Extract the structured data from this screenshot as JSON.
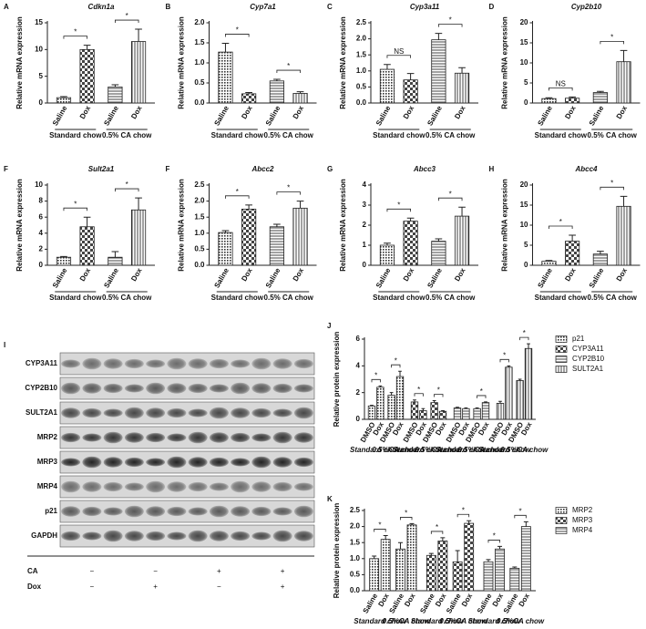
{
  "chart_data": [
    {
      "type": "bar",
      "panel": "A",
      "title": "Cdkn1a",
      "ylabel": "Relative mRNA expression",
      "categories": [
        "Saline",
        "Dox",
        "Saline",
        "Dox"
      ],
      "groups": [
        "Standard chow",
        "0.5% CA chow"
      ],
      "values": [
        1.0,
        10.0,
        3.0,
        11.5
      ],
      "errors": [
        0.2,
        0.8,
        0.4,
        2.3
      ],
      "ylim": [
        0,
        15
      ],
      "yticks": [
        0,
        5,
        10,
        15
      ],
      "significance": [
        "*",
        "*"
      ]
    },
    {
      "type": "bar",
      "panel": "B",
      "title": "Cyp7a1",
      "ylabel": "Relative mRNA expression",
      "categories": [
        "Saline",
        "Dox",
        "Saline",
        "Dox"
      ],
      "groups": [
        "Standard chow",
        "0.5% CA chow"
      ],
      "values": [
        1.27,
        0.23,
        0.55,
        0.24
      ],
      "errors": [
        0.22,
        0.03,
        0.04,
        0.04
      ],
      "ylim": [
        0,
        2
      ],
      "yticks": [
        {
          "value": 0,
          "label": "0.0"
        },
        0.5,
        {
          "value": 1,
          "label": "1.0"
        },
        1.5,
        {
          "value": 2,
          "label": "2.0"
        }
      ],
      "significance": [
        "*",
        "*"
      ]
    },
    {
      "type": "bar",
      "panel": "C",
      "title": "Cyp3a11",
      "ylabel": "Relative mRNA expression",
      "categories": [
        "Saline",
        "Dox",
        "Saline",
        "Dox"
      ],
      "groups": [
        "Standard chow",
        "0.5% CA chow"
      ],
      "values": [
        1.05,
        0.72,
        1.97,
        0.93
      ],
      "errors": [
        0.15,
        0.2,
        0.2,
        0.17
      ],
      "ylim": [
        0,
        2.5
      ],
      "yticks": [
        {
          "value": 0,
          "label": "0.0"
        },
        0.5,
        {
          "value": 1,
          "label": "1.0"
        },
        1.5,
        {
          "value": 2,
          "label": "2.0"
        },
        2.5
      ],
      "significance": [
        "NS",
        "*"
      ]
    },
    {
      "type": "bar",
      "panel": "D",
      "title": "Cyp2b10",
      "ylabel": "Relative mRNA expression",
      "categories": [
        "Saline",
        "Dox",
        "Saline",
        "Dox"
      ],
      "groups": [
        "Standard chow",
        "0.5% CA chow"
      ],
      "values": [
        1.1,
        1.2,
        2.6,
        10.3
      ],
      "errors": [
        0.2,
        0.3,
        0.3,
        2.8
      ],
      "ylim": [
        0,
        20
      ],
      "yticks": [
        0,
        5,
        10,
        15,
        20
      ],
      "significance": [
        "NS",
        "*"
      ]
    },
    {
      "type": "bar",
      "panel": "F",
      "title": "Sult2a1",
      "ylabel": "Relative mRNA expression",
      "categories": [
        "Saline",
        "Dox",
        "Saline",
        "Dox"
      ],
      "groups": [
        "Standard chow",
        "0.5% CA chow"
      ],
      "values": [
        1.0,
        4.8,
        1.0,
        6.9
      ],
      "errors": [
        0.1,
        1.2,
        0.7,
        1.5
      ],
      "ylim": [
        0,
        10
      ],
      "yticks": [
        0,
        2,
        4,
        6,
        8,
        10
      ],
      "significance": [
        "*",
        "*"
      ]
    },
    {
      "type": "bar",
      "panel": "F",
      "title": "Abcc2",
      "ylabel": "Relative mRNA expression",
      "categories": [
        "Saline",
        "Dox",
        "Saline",
        "Dox"
      ],
      "groups": [
        "Standard chow",
        "0.5% CA chow"
      ],
      "values": [
        1.02,
        1.75,
        1.2,
        1.78
      ],
      "errors": [
        0.06,
        0.13,
        0.08,
        0.22
      ],
      "ylim": [
        0,
        2.5
      ],
      "yticks": [
        {
          "value": 0,
          "label": "0.0"
        },
        0.5,
        {
          "value": 1,
          "label": "1.0"
        },
        1.5,
        {
          "value": 2,
          "label": "2.0"
        },
        2.5
      ],
      "significance": [
        "*",
        "*"
      ]
    },
    {
      "type": "bar",
      "panel": "G",
      "title": "Abcc3",
      "ylabel": "Relative mRNA expression",
      "categories": [
        "Saline",
        "Dox",
        "Saline",
        "Dox"
      ],
      "groups": [
        "Standard chow",
        "0.5% CA chow"
      ],
      "values": [
        1.0,
        2.2,
        1.2,
        2.45
      ],
      "errors": [
        0.1,
        0.15,
        0.12,
        0.45
      ],
      "ylim": [
        0,
        4
      ],
      "yticks": [
        0,
        1,
        2,
        3,
        4
      ],
      "significance": [
        "*",
        "*"
      ]
    },
    {
      "type": "bar",
      "panel": "H",
      "title": "Abcc4",
      "ylabel": "Relative mRNA expression",
      "categories": [
        "Saline",
        "Dox",
        "Saline",
        "Dox"
      ],
      "groups": [
        "Standard chow",
        "0.5% CA chow"
      ],
      "values": [
        1.0,
        6.0,
        2.8,
        14.7
      ],
      "errors": [
        0.2,
        1.5,
        0.7,
        2.5
      ],
      "ylim": [
        0,
        20
      ],
      "yticks": [
        0,
        5,
        10,
        15,
        20
      ],
      "significance": [
        "*",
        "*"
      ]
    },
    {
      "type": "grouped_bar",
      "panel": "J",
      "ylabel": "Relative protein expression",
      "categories": [
        "DMSO",
        "Dox",
        "DMSO",
        "Dox"
      ],
      "groups": [
        "Standard chow",
        "0.5%CA chow"
      ],
      "ylim": [
        0,
        6
      ],
      "yticks": [
        0,
        2,
        4,
        6
      ],
      "legend": "right",
      "series": [
        {
          "name": "p21",
          "values": [
            1.0,
            2.4,
            1.8,
            3.2
          ],
          "errors": [
            0.05,
            0.1,
            0.2,
            0.4
          ],
          "significance": [
            "*",
            "*"
          ]
        },
        {
          "name": "CYP3A11",
          "values": [
            1.3,
            0.65,
            1.25,
            0.6
          ],
          "errors": [
            0.15,
            0.15,
            0.15,
            0.05
          ],
          "significance": [
            "*",
            "*"
          ]
        },
        {
          "name": "CYP2B10",
          "values": [
            0.85,
            0.8,
            0.8,
            1.25
          ],
          "errors": [
            0.05,
            0.05,
            0.05,
            0.05
          ],
          "significance": [
            "",
            "*"
          ]
        },
        {
          "name": "SULT2A1",
          "values": [
            1.2,
            3.9,
            2.9,
            5.3
          ],
          "errors": [
            0.15,
            0.1,
            0.1,
            0.35
          ],
          "significance": [
            "*",
            "*"
          ]
        }
      ]
    },
    {
      "type": "grouped_bar",
      "panel": "K",
      "ylabel": "Relative protein expression",
      "categories": [
        "Saline",
        "Dox",
        "Saline",
        "Dox"
      ],
      "groups": [
        "Standard chow",
        "0.5%CA chow"
      ],
      "ylim": [
        0,
        2.5
      ],
      "yticks": [
        {
          "value": 0,
          "label": "0.0"
        },
        0.5,
        {
          "value": 1,
          "label": "1.0"
        },
        1.5,
        {
          "value": 2,
          "label": "2.0"
        },
        2.5
      ],
      "legend": "right",
      "series": [
        {
          "name": "MRP2",
          "values": [
            1.0,
            1.6,
            1.3,
            2.05
          ],
          "errors": [
            0.08,
            0.12,
            0.2,
            0.04
          ],
          "significance": [
            "*",
            "*"
          ]
        },
        {
          "name": "MRP3",
          "values": [
            1.1,
            1.55,
            0.9,
            2.1
          ],
          "errors": [
            0.06,
            0.1,
            0.35,
            0.08
          ],
          "significance": [
            "*",
            "*"
          ]
        },
        {
          "name": "MRP4",
          "values": [
            0.9,
            1.3,
            0.7,
            2.0
          ],
          "errors": [
            0.07,
            0.08,
            0.04,
            0.15
          ],
          "significance": [
            "*",
            "*"
          ]
        }
      ]
    }
  ],
  "blot": {
    "panel": "I",
    "proteins": [
      "CYP3A11",
      "CYP2B10",
      "SULT2A1",
      "MRP2",
      "MRP3",
      "MRP4",
      "p21",
      "GAPDH"
    ],
    "conditions": [
      {
        "name": "CA",
        "signs": [
          "−",
          "−",
          "+",
          "+"
        ]
      },
      {
        "name": "Dox",
        "signs": [
          "−",
          "+",
          "−",
          "+"
        ]
      }
    ]
  }
}
